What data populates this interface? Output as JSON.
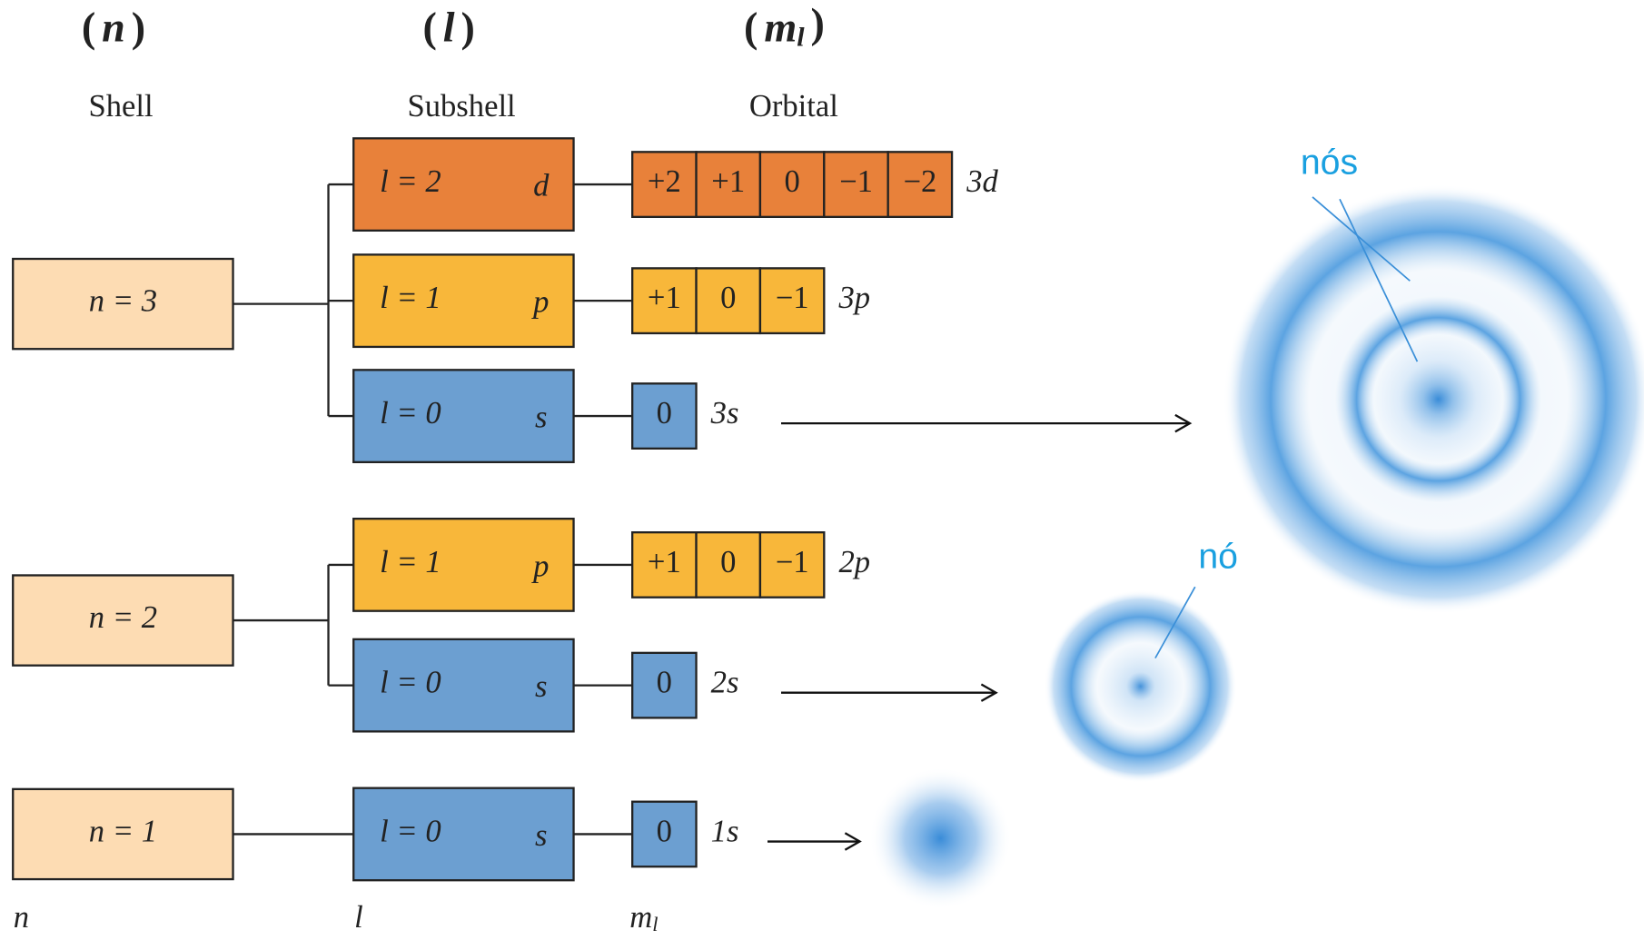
{
  "brackets": [
    "(",
    ")"
  ],
  "headers": [
    {
      "symbol": "n"
    },
    {
      "symbol": "l"
    },
    {
      "symbol": "m",
      "subscript": "l"
    }
  ],
  "column_titles": [
    "Shell",
    "Subshell",
    "Orbital"
  ],
  "shells": [
    {
      "label": "n = 3",
      "subshells": [
        {
          "label": "l = 2",
          "letter": "d",
          "orbitals": [
            "+2",
            "+1",
            "0",
            "−1",
            "−2"
          ],
          "name": "3d"
        },
        {
          "label": "l = 1",
          "letter": "p",
          "orbitals": [
            "+1",
            "0",
            "−1"
          ],
          "name": "3p"
        },
        {
          "label": "l = 0",
          "letter": "s",
          "orbitals": [
            "0"
          ],
          "name": "3s"
        }
      ]
    },
    {
      "label": "n = 2",
      "subshells": [
        {
          "label": "l = 1",
          "letter": "p",
          "orbitals": [
            "+1",
            "0",
            "−1"
          ],
          "name": "2p"
        },
        {
          "label": "l = 0",
          "letter": "s",
          "orbitals": [
            "0"
          ],
          "name": "2s"
        }
      ]
    },
    {
      "label": "n = 1",
      "subshells": [
        {
          "label": "l = 0",
          "letter": "s",
          "orbitals": [
            "0"
          ],
          "name": "1s"
        }
      ]
    }
  ],
  "footer": [
    {
      "symbol": "n"
    },
    {
      "symbol": "l"
    },
    {
      "symbol": "m",
      "subscript": "l"
    }
  ],
  "annotations": [
    "nós",
    "nó"
  ]
}
